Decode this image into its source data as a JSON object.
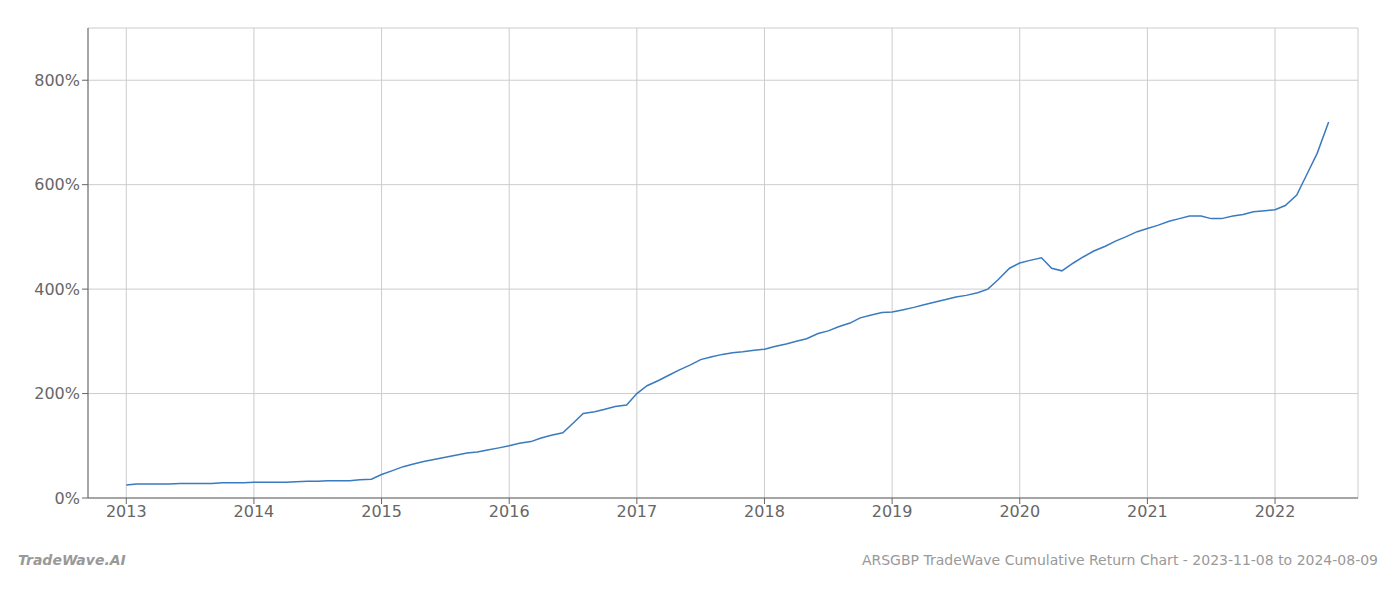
{
  "chart_data": {
    "type": "line",
    "title": "ARSGBP TradeWave Cumulative Return Chart - 2023-11-08 to 2024-08-09",
    "annotations": [
      "TradeWave.AI"
    ],
    "color": "#3a7abf",
    "grid": true,
    "x": [
      2013.0,
      2013.08,
      2013.17,
      2013.25,
      2013.33,
      2013.42,
      2013.5,
      2013.58,
      2013.67,
      2013.75,
      2013.83,
      2013.92,
      2014.0,
      2014.08,
      2014.17,
      2014.25,
      2014.33,
      2014.42,
      2014.5,
      2014.58,
      2014.67,
      2014.75,
      2014.83,
      2014.92,
      2015.0,
      2015.08,
      2015.17,
      2015.25,
      2015.33,
      2015.42,
      2015.5,
      2015.58,
      2015.67,
      2015.75,
      2015.83,
      2015.92,
      2016.0,
      2016.08,
      2016.17,
      2016.25,
      2016.33,
      2016.42,
      2016.5,
      2016.58,
      2016.67,
      2016.75,
      2016.83,
      2016.92,
      2017.0,
      2017.08,
      2017.17,
      2017.25,
      2017.33,
      2017.42,
      2017.5,
      2017.58,
      2017.67,
      2017.75,
      2017.83,
      2017.92,
      2018.0,
      2018.08,
      2018.17,
      2018.25,
      2018.33,
      2018.42,
      2018.5,
      2018.58,
      2018.67,
      2018.75,
      2018.83,
      2018.92,
      2019.0,
      2019.08,
      2019.17,
      2019.25,
      2019.33,
      2019.42,
      2019.5,
      2019.58,
      2019.67,
      2019.75,
      2019.83,
      2019.92,
      2020.0,
      2020.08,
      2020.17,
      2020.25,
      2020.33,
      2020.42,
      2020.5,
      2020.58,
      2020.67,
      2020.75,
      2020.83,
      2020.92,
      2021.0,
      2021.08,
      2021.17,
      2021.25,
      2021.33,
      2021.42,
      2021.5,
      2021.58,
      2021.67,
      2021.75,
      2021.83,
      2021.92,
      2022.0,
      2022.08,
      2022.17,
      2022.25,
      2022.33,
      2022.42
    ],
    "values": [
      25,
      27,
      27,
      27,
      27,
      28,
      28,
      28,
      28,
      29,
      29,
      29,
      30,
      30,
      30,
      30,
      31,
      32,
      32,
      33,
      33,
      33,
      35,
      36,
      45,
      52,
      60,
      65,
      70,
      74,
      78,
      82,
      86,
      88,
      92,
      96,
      100,
      105,
      108,
      115,
      120,
      125,
      143,
      162,
      165,
      170,
      175,
      178,
      200,
      215,
      225,
      235,
      245,
      255,
      265,
      270,
      275,
      278,
      280,
      283,
      285,
      290,
      295,
      300,
      305,
      315,
      320,
      328,
      335,
      345,
      350,
      355,
      356,
      360,
      365,
      370,
      375,
      380,
      385,
      388,
      393,
      400,
      418,
      440,
      450,
      455,
      460,
      440,
      435,
      450,
      462,
      473,
      482,
      492,
      500,
      510,
      516,
      522,
      530,
      535,
      540,
      540,
      535,
      535,
      540,
      543,
      548,
      550,
      552,
      560,
      580,
      620,
      660,
      720
    ],
    "xlim": [
      2012.7,
      2022.65
    ],
    "xticks": [
      2013,
      2014,
      2015,
      2016,
      2017,
      2018,
      2019,
      2020,
      2021,
      2022
    ],
    "ylim": [
      0,
      900
    ],
    "yticks": [
      {
        "value": 0,
        "label": "0%"
      },
      {
        "value": 200,
        "label": "200%"
      },
      {
        "value": 400,
        "label": "400%"
      },
      {
        "value": 600,
        "label": "600%"
      },
      {
        "value": 800,
        "label": "800%"
      }
    ]
  }
}
